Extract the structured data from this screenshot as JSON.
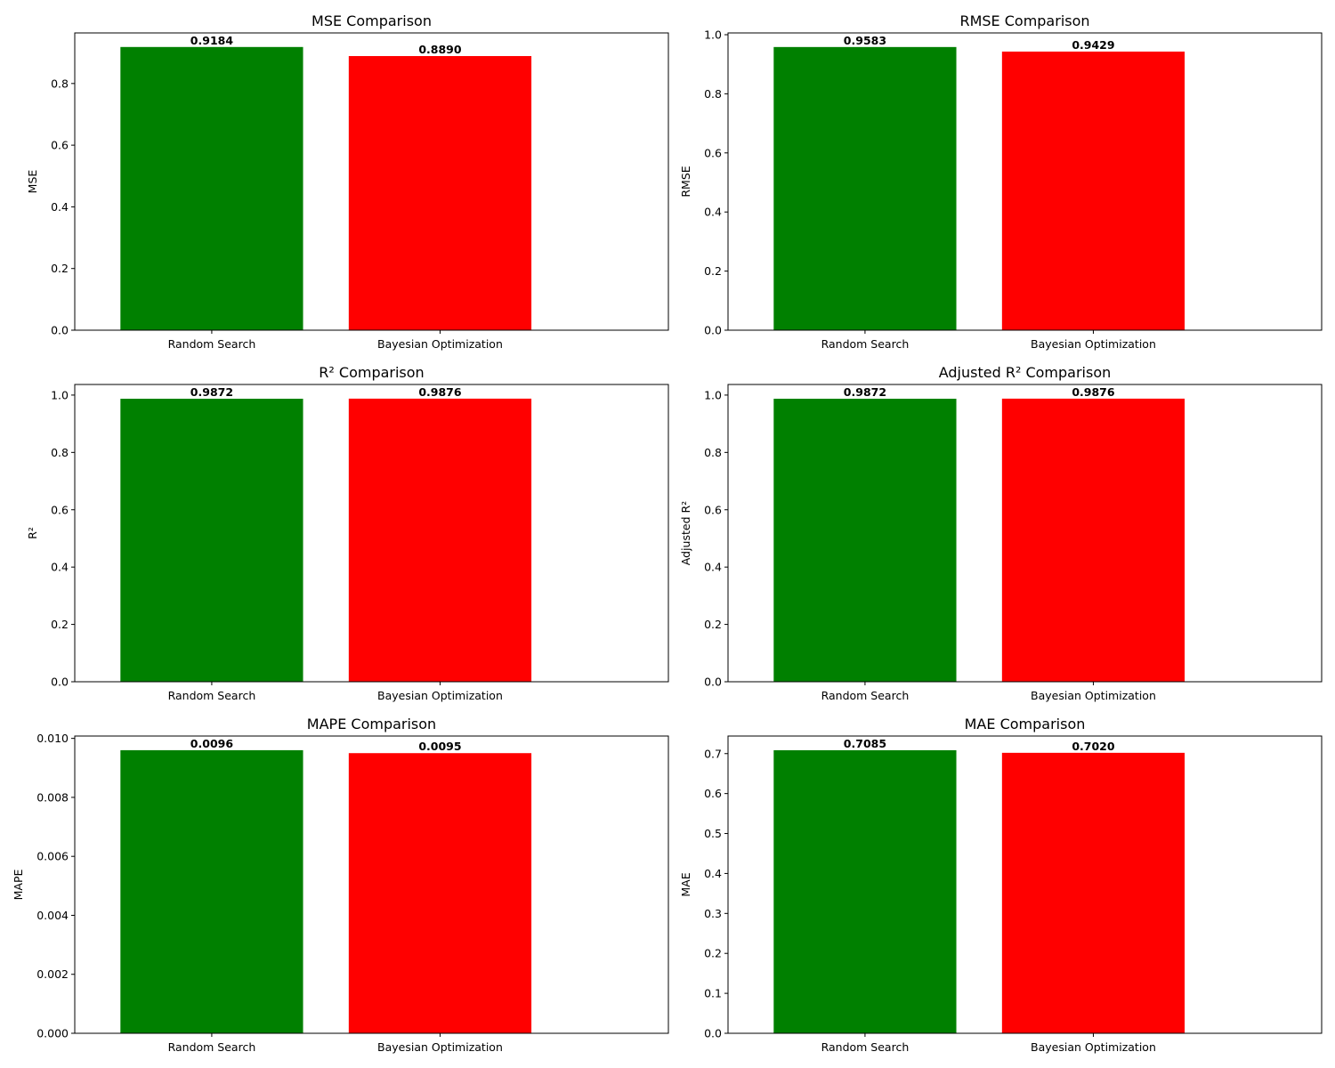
{
  "chart_data": [
    {
      "type": "bar",
      "title": "MSE Comparison",
      "xlabel": "",
      "ylabel": "MSE",
      "categories": [
        "Random Search",
        "Bayesian Optimization"
      ],
      "values": [
        0.9184,
        0.889
      ],
      "data_labels": [
        "0.9184",
        "0.8890"
      ],
      "colors": [
        "#008000",
        "#ff0000"
      ],
      "ylim": [
        0,
        0.964
      ],
      "yticks": [
        0.0,
        0.2,
        0.4,
        0.6,
        0.8
      ],
      "ytick_labels": [
        "0.0",
        "0.2",
        "0.4",
        "0.6",
        "0.8"
      ],
      "grid": false,
      "legend": "none"
    },
    {
      "type": "bar",
      "title": "RMSE Comparison",
      "xlabel": "",
      "ylabel": "RMSE",
      "categories": [
        "Random Search",
        "Bayesian Optimization"
      ],
      "values": [
        0.9583,
        0.9429
      ],
      "data_labels": [
        "0.9583",
        "0.9429"
      ],
      "colors": [
        "#008000",
        "#ff0000"
      ],
      "ylim": [
        0,
        1.006
      ],
      "yticks": [
        0.0,
        0.2,
        0.4,
        0.6,
        0.8,
        1.0
      ],
      "ytick_labels": [
        "0.0",
        "0.2",
        "0.4",
        "0.6",
        "0.8",
        "1.0"
      ],
      "grid": false,
      "legend": "none"
    },
    {
      "type": "bar",
      "title": "R² Comparison",
      "xlabel": "",
      "ylabel": "R²",
      "categories": [
        "Random Search",
        "Bayesian Optimization"
      ],
      "values": [
        0.9872,
        0.9876
      ],
      "data_labels": [
        "0.9872",
        "0.9876"
      ],
      "colors": [
        "#008000",
        "#ff0000"
      ],
      "ylim": [
        0,
        1.037
      ],
      "yticks": [
        0.0,
        0.2,
        0.4,
        0.6,
        0.8,
        1.0
      ],
      "ytick_labels": [
        "0.0",
        "0.2",
        "0.4",
        "0.6",
        "0.8",
        "1.0"
      ],
      "grid": false,
      "legend": "none"
    },
    {
      "type": "bar",
      "title": "Adjusted R² Comparison",
      "xlabel": "",
      "ylabel": "Adjusted R²",
      "categories": [
        "Random Search",
        "Bayesian Optimization"
      ],
      "values": [
        0.9872,
        0.9876
      ],
      "data_labels": [
        "0.9872",
        "0.9876"
      ],
      "colors": [
        "#008000",
        "#ff0000"
      ],
      "ylim": [
        0,
        1.037
      ],
      "yticks": [
        0.0,
        0.2,
        0.4,
        0.6,
        0.8,
        1.0
      ],
      "ytick_labels": [
        "0.0",
        "0.2",
        "0.4",
        "0.6",
        "0.8",
        "1.0"
      ],
      "grid": false,
      "legend": "none"
    },
    {
      "type": "bar",
      "title": "MAPE Comparison",
      "xlabel": "",
      "ylabel": "MAPE",
      "categories": [
        "Random Search",
        "Bayesian Optimization"
      ],
      "values": [
        0.0096,
        0.0095
      ],
      "data_labels": [
        "0.0096",
        "0.0095"
      ],
      "colors": [
        "#008000",
        "#ff0000"
      ],
      "ylim": [
        0,
        0.01008
      ],
      "yticks": [
        0.0,
        0.002,
        0.004,
        0.006,
        0.008,
        0.01
      ],
      "ytick_labels": [
        "0.000",
        "0.002",
        "0.004",
        "0.006",
        "0.008",
        "0.010"
      ],
      "grid": false,
      "legend": "none"
    },
    {
      "type": "bar",
      "title": "MAE Comparison",
      "xlabel": "",
      "ylabel": "MAE",
      "categories": [
        "Random Search",
        "Bayesian Optimization"
      ],
      "values": [
        0.7085,
        0.702
      ],
      "data_labels": [
        "0.7085",
        "0.7020"
      ],
      "colors": [
        "#008000",
        "#ff0000"
      ],
      "ylim": [
        0,
        0.744
      ],
      "yticks": [
        0.0,
        0.1,
        0.2,
        0.3,
        0.4,
        0.5,
        0.6,
        0.7
      ],
      "ytick_labels": [
        "0.0",
        "0.1",
        "0.2",
        "0.3",
        "0.4",
        "0.5",
        "0.6",
        "0.7"
      ],
      "grid": false,
      "legend": "none"
    }
  ]
}
